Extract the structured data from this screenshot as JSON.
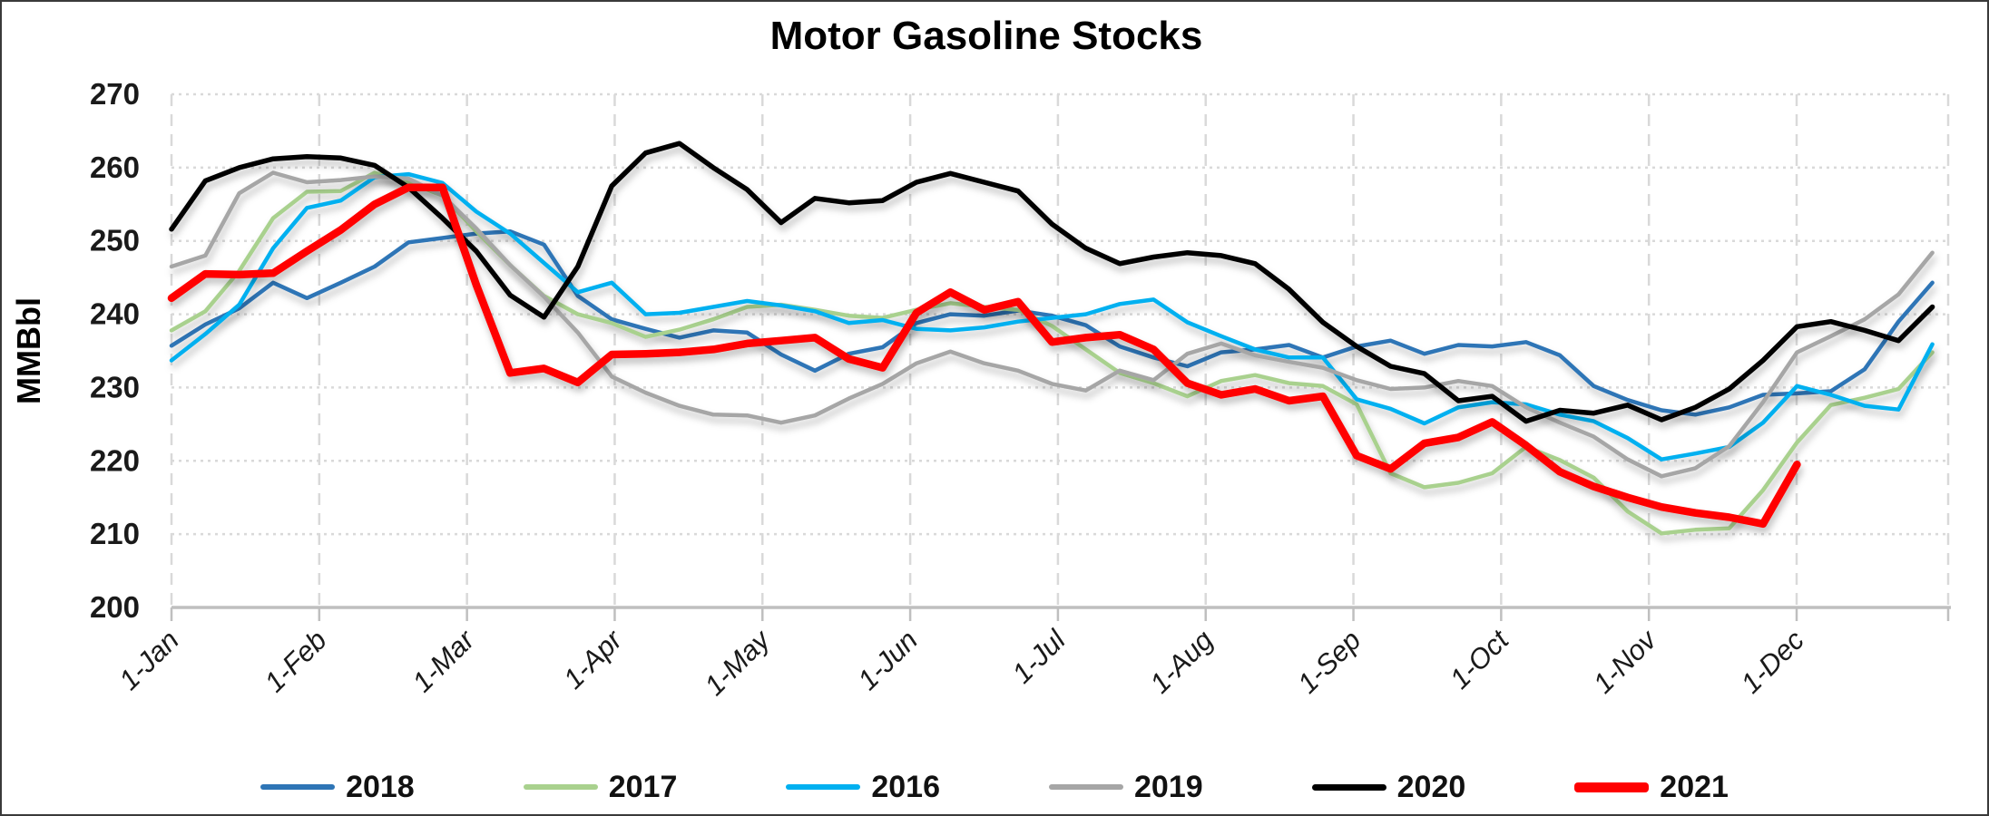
{
  "title": "Motor Gasoline Stocks",
  "y_axis": {
    "label": "MMBbl",
    "ticks": [
      "200",
      "210",
      "220",
      "230",
      "240",
      "250",
      "260",
      "270"
    ]
  },
  "x_axis": {
    "labels": [
      "1-Jan",
      "1-Feb",
      "1-Mar",
      "1-Apr",
      "1-May",
      "1-Jun",
      "1-Jul",
      "1-Aug",
      "1-Sep",
      "1-Oct",
      "1-Nov",
      "1-Dec"
    ]
  },
  "legend": {
    "items": [
      {
        "label": "2018",
        "color": "#2E75B6"
      },
      {
        "label": "2017",
        "color": "#A9D18E"
      },
      {
        "label": "2016",
        "color": "#00B0F0"
      },
      {
        "label": "2019",
        "color": "#A6A6A6"
      },
      {
        "label": "2020",
        "color": "#000000"
      },
      {
        "label": "2021",
        "color": "#FF0000"
      }
    ]
  },
  "style": {
    "grid_color": "#D9D9D9",
    "axis_color": "#BFBFBF",
    "background": "#FFFFFF"
  },
  "chart_data": {
    "type": "line",
    "title": "Motor Gasoline Stocks",
    "xlabel": "",
    "ylabel": "MMBbl",
    "x_unit": "week_of_year",
    "ylim": [
      200,
      270
    ],
    "grid": true,
    "legend_position": "bottom",
    "x_tick_labels": [
      "1-Jan",
      "1-Feb",
      "1-Mar",
      "1-Apr",
      "1-May",
      "1-Jun",
      "1-Jul",
      "1-Aug",
      "1-Sep",
      "1-Oct",
      "1-Nov",
      "1-Dec"
    ],
    "series": [
      {
        "name": "2018",
        "color": "#2E75B6",
        "width": 4.5,
        "values": [
          235.7,
          238.6,
          240.8,
          244.3,
          242.2,
          244.3,
          246.5,
          249.8,
          250.4,
          251.0,
          251.3,
          249.5,
          242.5,
          239.3,
          238.0,
          236.8,
          237.8,
          237.5,
          234.5,
          232.3,
          234.6,
          235.5,
          238.8,
          240.0,
          239.8,
          240.5,
          239.8,
          238.5,
          235.6,
          234.1,
          232.9,
          234.8,
          235.2,
          235.8,
          234.1,
          235.6,
          236.4,
          234.6,
          235.8,
          235.6,
          236.2,
          234.4,
          230.2,
          228.3,
          226.9,
          226.3,
          227.3,
          229.0,
          229.2,
          229.5,
          232.5,
          239.0,
          244.3
        ]
      },
      {
        "name": "2017",
        "color": "#A9D18E",
        "width": 4.5,
        "values": [
          237.8,
          240.4,
          245.9,
          253.1,
          256.7,
          256.8,
          259.3,
          258.0,
          256.2,
          251.3,
          246.7,
          242.5,
          240.0,
          238.8,
          236.9,
          237.9,
          239.3,
          241.0,
          241.3,
          240.6,
          239.8,
          239.5,
          240.6,
          241.5,
          241.0,
          240.6,
          238.4,
          235.2,
          232.0,
          230.6,
          228.8,
          230.9,
          231.7,
          230.6,
          230.2,
          227.7,
          218.3,
          216.4,
          217.0,
          218.3,
          221.9,
          220.1,
          217.7,
          213.1,
          210.1,
          210.6,
          210.8,
          216.0,
          222.5,
          227.6,
          228.6,
          229.8,
          234.8
        ]
      },
      {
        "name": "2016",
        "color": "#00B0F0",
        "width": 4.5,
        "values": [
          233.7,
          237.3,
          241.3,
          249.0,
          254.5,
          255.5,
          258.7,
          259.1,
          257.9,
          254.0,
          251.0,
          247.0,
          243.0,
          244.3,
          240.0,
          240.2,
          241.0,
          241.8,
          241.2,
          240.4,
          238.8,
          239.2,
          238.0,
          237.8,
          238.2,
          239.0,
          239.5,
          240.0,
          241.4,
          242.0,
          238.9,
          237.0,
          235.2,
          234.1,
          234.1,
          228.4,
          227.1,
          225.1,
          227.3,
          228.0,
          227.7,
          226.3,
          225.4,
          223.1,
          220.2,
          221.0,
          221.9,
          225.2,
          230.2,
          229.0,
          227.5,
          227.0,
          235.9
        ]
      },
      {
        "name": "2019",
        "color": "#A6A6A6",
        "width": 4.5,
        "values": [
          246.5,
          248.0,
          256.5,
          259.3,
          258.0,
          258.3,
          258.8,
          258.5,
          256.2,
          251.7,
          246.7,
          242.4,
          237.5,
          231.5,
          229.3,
          227.5,
          226.3,
          226.2,
          225.2,
          226.2,
          228.5,
          230.5,
          233.3,
          234.9,
          233.3,
          232.3,
          230.5,
          229.6,
          232.3,
          231.0,
          234.6,
          236.0,
          234.4,
          233.5,
          232.7,
          231.0,
          229.8,
          230.0,
          230.9,
          230.2,
          227.3,
          225.2,
          223.3,
          220.2,
          217.9,
          219.0,
          222.0,
          228.0,
          234.8,
          237.0,
          239.3,
          242.7,
          248.4
        ]
      },
      {
        "name": "2020",
        "color": "#000000",
        "width": 5.5,
        "values": [
          251.6,
          258.2,
          260.0,
          261.2,
          261.5,
          261.3,
          260.3,
          257.3,
          253.1,
          248.6,
          242.6,
          239.6,
          246.5,
          257.5,
          262.0,
          263.3,
          260.0,
          257.0,
          252.5,
          255.8,
          255.2,
          255.5,
          258.0,
          259.2,
          258.0,
          256.8,
          252.3,
          249.0,
          246.9,
          247.8,
          248.4,
          248.0,
          246.9,
          243.4,
          238.9,
          235.6,
          232.9,
          231.9,
          228.2,
          228.8,
          225.4,
          226.9,
          226.5,
          227.6,
          225.6,
          227.3,
          229.8,
          233.7,
          238.3,
          239.0,
          237.8,
          236.4,
          241.0
        ]
      },
      {
        "name": "2021",
        "color": "#FF0000",
        "width": 8.5,
        "values": [
          242.2,
          245.5,
          245.4,
          245.6,
          248.6,
          251.5,
          255.0,
          257.3,
          257.3,
          244.0,
          232.0,
          232.6,
          230.7,
          234.5,
          234.6,
          234.8,
          235.2,
          236.0,
          236.4,
          236.8,
          233.9,
          232.7,
          240.2,
          243.0,
          240.6,
          241.7,
          236.2,
          236.8,
          237.2,
          235.2,
          230.6,
          229.0,
          229.8,
          228.2,
          228.8,
          220.7,
          218.9,
          222.4,
          223.2,
          225.3,
          222.1,
          218.5,
          216.5,
          215.0,
          213.7,
          212.9,
          212.3,
          211.4,
          219.5
        ]
      }
    ]
  }
}
